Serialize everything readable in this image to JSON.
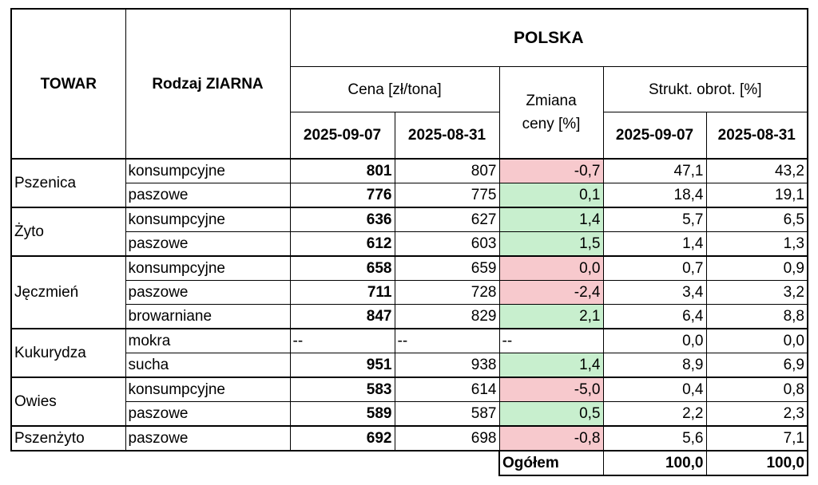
{
  "header": {
    "col_towar": "TOWAR",
    "col_rodzaj": "Rodzaj ZIARNA",
    "region": "POLSKA",
    "price_group": "Cena [zł/tona]",
    "change_line1": "Zmiana",
    "change_line2": "ceny [%]",
    "structure_group": "Strukt. obrot. [%]",
    "date_current": "2025-09-07",
    "date_previous": "2025-08-31"
  },
  "groups": [
    {
      "towar": "Pszenica",
      "rows": [
        {
          "rodzaj": "konsumpcyjne",
          "price_current": "801",
          "price_previous": "807",
          "change": "-0,7",
          "change_status": "negative",
          "share_current": "47,1",
          "share_previous": "43,2"
        },
        {
          "rodzaj": "paszowe",
          "price_current": "776",
          "price_previous": "775",
          "change": "0,1",
          "change_status": "positive",
          "share_current": "18,4",
          "share_previous": "19,1"
        }
      ]
    },
    {
      "towar": "Żyto",
      "rows": [
        {
          "rodzaj": "konsumpcyjne",
          "price_current": "636",
          "price_previous": "627",
          "change": "1,4",
          "change_status": "positive",
          "share_current": "5,7",
          "share_previous": "6,5"
        },
        {
          "rodzaj": "paszowe",
          "price_current": "612",
          "price_previous": "603",
          "change": "1,5",
          "change_status": "positive",
          "share_current": "1,4",
          "share_previous": "1,3"
        }
      ]
    },
    {
      "towar": "Jęczmień",
      "rows": [
        {
          "rodzaj": "konsumpcyjne",
          "price_current": "658",
          "price_previous": "659",
          "change": "0,0",
          "change_status": "negative",
          "share_current": "0,7",
          "share_previous": "0,9"
        },
        {
          "rodzaj": "paszowe",
          "price_current": "711",
          "price_previous": "728",
          "change": "-2,4",
          "change_status": "negative",
          "share_current": "3,4",
          "share_previous": "3,2"
        },
        {
          "rodzaj": "browarniane",
          "price_current": "847",
          "price_previous": "829",
          "change": "2,1",
          "change_status": "positive",
          "share_current": "6,4",
          "share_previous": "8,8"
        }
      ]
    },
    {
      "towar": "Kukurydza",
      "rows": [
        {
          "rodzaj": "mokra",
          "price_current": "--",
          "price_previous": "--",
          "change": "--",
          "change_status": "none",
          "share_current": "0,0",
          "share_previous": "0,0"
        },
        {
          "rodzaj": "sucha",
          "price_current": "951",
          "price_previous": "938",
          "change": "1,4",
          "change_status": "positive",
          "share_current": "8,9",
          "share_previous": "6,9"
        }
      ]
    },
    {
      "towar": "Owies",
      "rows": [
        {
          "rodzaj": "konsumpcyjne",
          "price_current": "583",
          "price_previous": "614",
          "change": "-5,0",
          "change_status": "negative",
          "share_current": "0,4",
          "share_previous": "0,8"
        },
        {
          "rodzaj": "paszowe",
          "price_current": "589",
          "price_previous": "587",
          "change": "0,5",
          "change_status": "positive",
          "share_current": "2,2",
          "share_previous": "2,3"
        }
      ]
    },
    {
      "towar": "Pszenżyto",
      "rows": [
        {
          "rodzaj": "paszowe",
          "price_current": "692",
          "price_previous": "698",
          "change": "-0,8",
          "change_status": "negative",
          "share_current": "5,6",
          "share_previous": "7,1"
        }
      ]
    }
  ],
  "total": {
    "label": "Ogółem",
    "share_current": "100,0",
    "share_previous": "100,0"
  },
  "colors": {
    "negative": "#f7c9cd",
    "positive": "#c8efce"
  }
}
